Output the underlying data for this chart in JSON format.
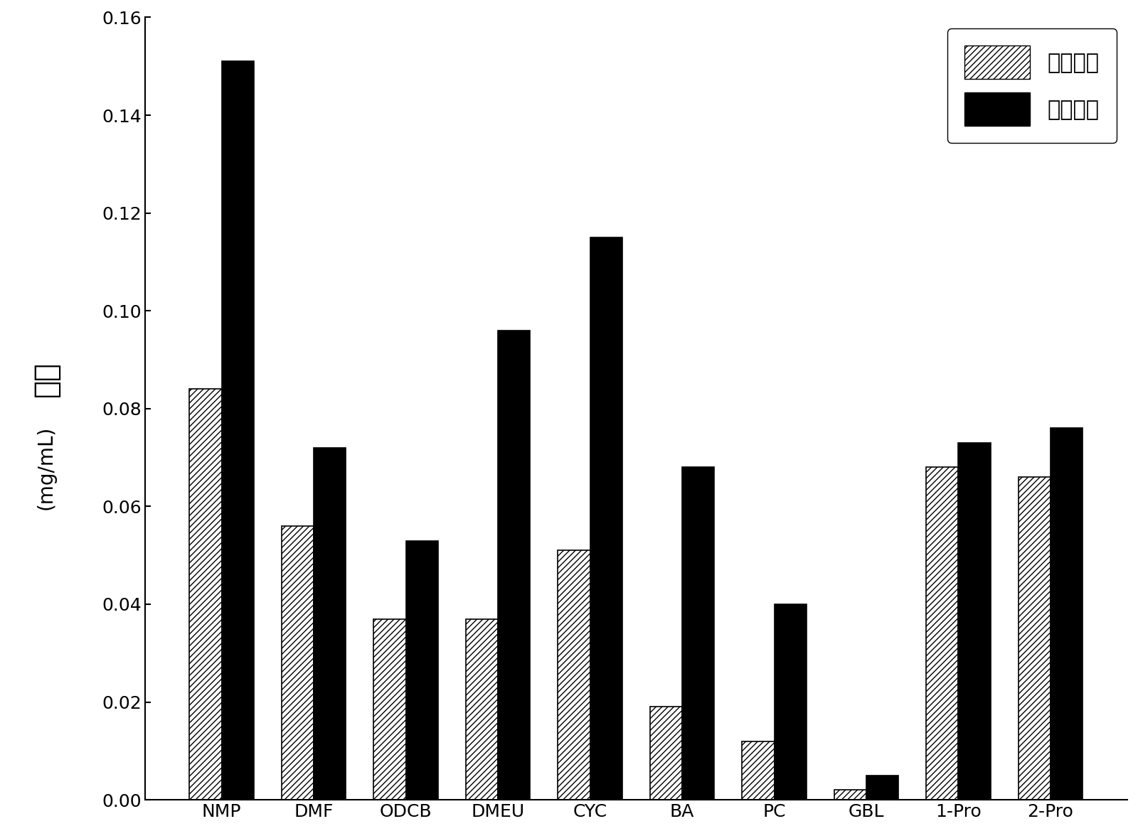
{
  "categories": [
    "NMP",
    "DMF",
    "ODCB",
    "DMEU",
    "CYC",
    "BA",
    "PC",
    "GBL",
    "1-Pro",
    "2-Pro"
  ],
  "no_intercalant": [
    0.084,
    0.056,
    0.037,
    0.037,
    0.051,
    0.019,
    0.012,
    0.002,
    0.068,
    0.066
  ],
  "with_intercalant": [
    0.151,
    0.072,
    0.053,
    0.096,
    0.115,
    0.068,
    0.04,
    0.005,
    0.073,
    0.076
  ],
  "ylabel_chinese": "浓度",
  "ylabel_unit": "(mg/mL)",
  "ylim": [
    0,
    0.16
  ],
  "yticks": [
    0.0,
    0.02,
    0.04,
    0.06,
    0.08,
    0.1,
    0.12,
    0.14,
    0.16
  ],
  "legend_no": "无插层剂",
  "legend_with": "有插层剂",
  "bar_width": 0.35,
  "hatch_pattern": "////",
  "no_intercalant_color": "white",
  "with_intercalant_color": "black",
  "edge_color": "black",
  "background_color": "white",
  "legend_fontsize": 22,
  "tick_fontsize": 18,
  "ylabel_fontsize": 30,
  "unit_fontsize": 20
}
